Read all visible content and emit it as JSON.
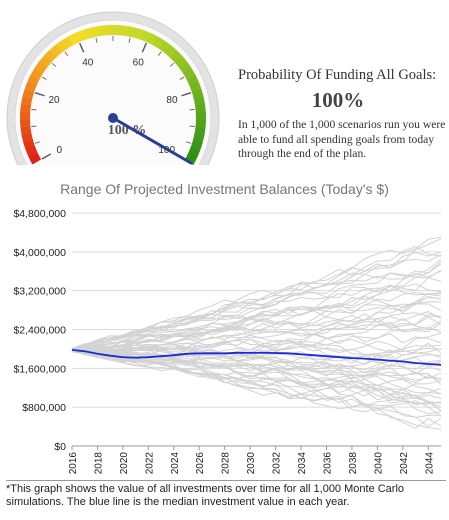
{
  "gauge": {
    "value": 100,
    "value_label": "100 %",
    "ticks": [
      "0",
      "20",
      "40",
      "60",
      "80",
      "100"
    ],
    "min": 0,
    "max": 100
  },
  "probability": {
    "title": "Probability Of Funding All Goals:",
    "value": "100%",
    "description": "In 1,000 of the 1,000 scenarios run you were able to fund all spending goals from today through the end of the plan."
  },
  "footnote": "*This graph shows the value of all investments over time for all 1,000 Monte Carlo simulations. The blue line is the median investment value in each year.",
  "colors": {
    "median_line": "#1a2bd6",
    "simulation_lines": "#d2d2d2",
    "needle": "#2b3f8f"
  },
  "chart_data": {
    "type": "line",
    "title": "Range Of Projected Investment Balances (Today's $)",
    "xlabel": "",
    "ylabel": "",
    "x": [
      2016,
      2017,
      2018,
      2019,
      2020,
      2021,
      2022,
      2023,
      2024,
      2025,
      2026,
      2027,
      2028,
      2029,
      2030,
      2031,
      2032,
      2033,
      2034,
      2035,
      2036,
      2037,
      2038,
      2039,
      2040,
      2041,
      2042,
      2043,
      2044,
      2045
    ],
    "xticks": [
      "2016",
      "2018",
      "2020",
      "2022",
      "2024",
      "2026",
      "2028",
      "2030",
      "2032",
      "2034",
      "2036",
      "2038",
      "2040",
      "2042",
      "2044"
    ],
    "ylim": [
      0,
      4800000
    ],
    "yticks": [
      "$0",
      "$800,000",
      "$1,600,000",
      "$2,400,000",
      "$3,200,000",
      "$4,000,000",
      "$4,800,000"
    ],
    "grid": true,
    "series": [
      {
        "role": "median",
        "values": [
          1980000,
          1950000,
          1900000,
          1860000,
          1830000,
          1820000,
          1830000,
          1850000,
          1870000,
          1900000,
          1910000,
          1910000,
          1910000,
          1920000,
          1920000,
          1920000,
          1915000,
          1910000,
          1890000,
          1870000,
          1850000,
          1830000,
          1810000,
          1800000,
          1780000,
          1760000,
          1740000,
          1710000,
          1690000,
          1670000
        ]
      },
      {
        "role": "simulations",
        "count": 60,
        "start": 1980000,
        "upper_envelope_end": 4200000,
        "lower_envelope_end": 380000
      }
    ]
  }
}
